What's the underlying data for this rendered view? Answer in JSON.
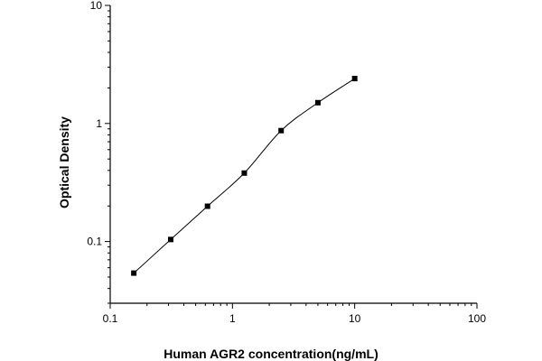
{
  "chart_data": {
    "type": "scatter",
    "title": "",
    "xlabel": "Human AGR2 concentration(ng/mL)",
    "ylabel": "Optical Density",
    "xscale": "log",
    "yscale": "log",
    "xlim": [
      0.1,
      100
    ],
    "ylim": [
      0.03,
      10
    ],
    "x_ticks": [
      0.1,
      1,
      10,
      100
    ],
    "x_tick_labels": [
      "0.1",
      "1",
      "10",
      "100"
    ],
    "y_ticks": [
      0.1,
      1,
      10
    ],
    "y_tick_labels": [
      "0.1",
      "1",
      "10"
    ],
    "grid": false,
    "legend": "none",
    "series": [
      {
        "points": [
          {
            "x": 0.156,
            "y": 0.054
          },
          {
            "x": 0.3125,
            "y": 0.104
          },
          {
            "x": 0.625,
            "y": 0.199
          },
          {
            "x": 1.25,
            "y": 0.38
          },
          {
            "x": 2.5,
            "y": 0.87
          },
          {
            "x": 5,
            "y": 1.5
          },
          {
            "x": 10,
            "y": 2.4
          }
        ],
        "marker": "square",
        "fit_curve": true
      }
    ],
    "colors": {
      "marker": "#000000",
      "curve": "#000000",
      "axis": "#000000"
    }
  }
}
